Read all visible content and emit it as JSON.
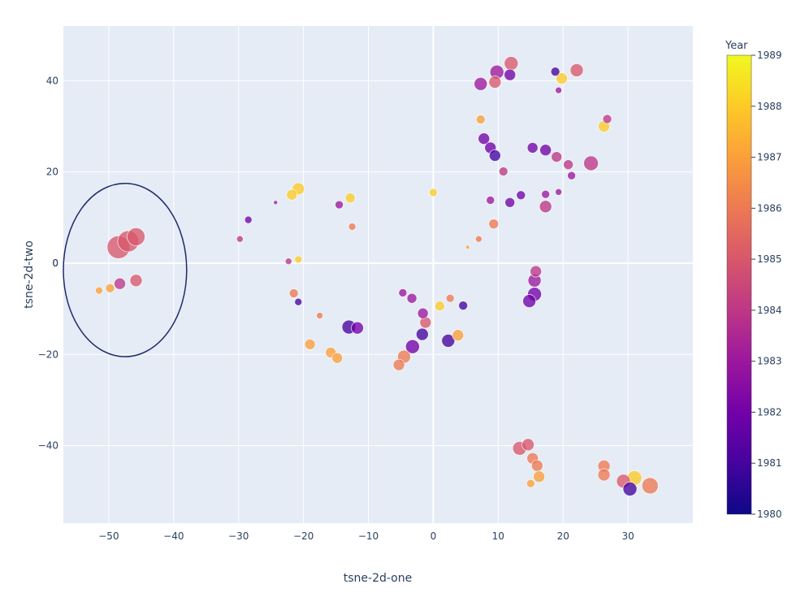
{
  "chart_data": {
    "type": "scatter",
    "xlabel": "tsne-2d-one",
    "ylabel": "tsne-2d-two",
    "xlim": [
      -57,
      40
    ],
    "ylim": [
      -57,
      52
    ],
    "x_ticks": [
      -50,
      -40,
      -30,
      -20,
      -10,
      0,
      10,
      20,
      30
    ],
    "y_ticks": [
      -40,
      -20,
      0,
      20,
      40
    ],
    "grid": true,
    "colorbar": {
      "title": "Year",
      "min": 1980,
      "max": 1989,
      "ticks": [
        1980,
        1981,
        1982,
        1983,
        1984,
        1985,
        1986,
        1987,
        1988,
        1989
      ],
      "colorscale": [
        "#0d0887",
        "#46039f",
        "#7201a8",
        "#9c179e",
        "#bd3786",
        "#d8576b",
        "#ed7953",
        "#fb9f3a",
        "#fdca26",
        "#f0f921"
      ]
    },
    "annotation_circle": {
      "cx": -47.5,
      "cy": -1.5,
      "rx": 9.5,
      "ry": 19
    },
    "points": [
      {
        "x": -48.5,
        "y": 3.5,
        "year": 1985,
        "size": 28
      },
      {
        "x": -47,
        "y": 4.8,
        "year": 1985,
        "size": 26
      },
      {
        "x": -45.8,
        "y": 5.8,
        "year": 1985,
        "size": 22
      },
      {
        "x": -45.8,
        "y": -3.8,
        "year": 1985,
        "size": 15
      },
      {
        "x": -48.3,
        "y": -4.5,
        "year": 1984,
        "size": 14
      },
      {
        "x": -49.8,
        "y": -5.5,
        "year": 1987,
        "size": 11
      },
      {
        "x": -51.5,
        "y": -6,
        "year": 1987,
        "size": 9
      },
      {
        "x": -29.8,
        "y": 5.3,
        "year": 1984,
        "size": 8
      },
      {
        "x": -28.5,
        "y": 9.5,
        "year": 1982,
        "size": 9
      },
      {
        "x": -24.3,
        "y": 13.3,
        "year": 1983,
        "size": 5
      },
      {
        "x": -21.8,
        "y": 15,
        "year": 1988,
        "size": 13
      },
      {
        "x": -20.8,
        "y": 16.3,
        "year": 1988,
        "size": 15
      },
      {
        "x": -22.3,
        "y": 0.4,
        "year": 1984,
        "size": 8
      },
      {
        "x": -20.8,
        "y": 0.8,
        "year": 1988,
        "size": 9
      },
      {
        "x": -21.5,
        "y": -6.6,
        "year": 1986,
        "size": 11
      },
      {
        "x": -20.8,
        "y": -8.5,
        "year": 1981,
        "size": 9
      },
      {
        "x": -19,
        "y": -17.8,
        "year": 1987,
        "size": 13
      },
      {
        "x": -17.5,
        "y": -11.5,
        "year": 1986,
        "size": 8
      },
      {
        "x": -15.8,
        "y": -19.6,
        "year": 1987,
        "size": 13
      },
      {
        "x": -14.8,
        "y": -20.8,
        "year": 1987,
        "size": 13
      },
      {
        "x": -14.5,
        "y": 12.8,
        "year": 1983,
        "size": 10
      },
      {
        "x": -12.8,
        "y": 14.3,
        "year": 1988,
        "size": 12
      },
      {
        "x": -12.5,
        "y": 8,
        "year": 1986,
        "size": 9
      },
      {
        "x": -13,
        "y": -14,
        "year": 1981,
        "size": 17
      },
      {
        "x": -11.7,
        "y": -14.2,
        "year": 1982,
        "size": 15
      },
      {
        "x": -4.7,
        "y": -6.5,
        "year": 1983,
        "size": 10
      },
      {
        "x": -3.3,
        "y": -7.7,
        "year": 1983,
        "size": 12
      },
      {
        "x": -5.3,
        "y": -22.3,
        "year": 1986,
        "size": 14
      },
      {
        "x": -4.5,
        "y": -20.5,
        "year": 1986,
        "size": 16
      },
      {
        "x": -3.2,
        "y": -18.3,
        "year": 1982,
        "size": 17
      },
      {
        "x": -1.7,
        "y": -15.6,
        "year": 1981,
        "size": 15
      },
      {
        "x": -1.6,
        "y": -11,
        "year": 1983,
        "size": 13
      },
      {
        "x": -1.2,
        "y": -13,
        "year": 1985,
        "size": 14
      },
      {
        "x": 0,
        "y": 15.5,
        "year": 1988,
        "size": 10
      },
      {
        "x": 1,
        "y": -9.4,
        "year": 1988,
        "size": 12
      },
      {
        "x": 2.6,
        "y": -7.7,
        "year": 1986,
        "size": 10
      },
      {
        "x": 2.3,
        "y": -17,
        "year": 1981,
        "size": 16
      },
      {
        "x": 3.8,
        "y": -15.8,
        "year": 1987,
        "size": 14
      },
      {
        "x": 4.6,
        "y": -9.3,
        "year": 1981,
        "size": 11
      },
      {
        "x": 5.3,
        "y": 3.5,
        "year": 1987,
        "size": 5
      },
      {
        "x": 7,
        "y": 5.3,
        "year": 1986,
        "size": 8
      },
      {
        "x": 7.3,
        "y": 31.5,
        "year": 1987,
        "size": 11
      },
      {
        "x": 7.3,
        "y": 39.3,
        "year": 1983,
        "size": 16
      },
      {
        "x": 7.8,
        "y": 27.3,
        "year": 1982,
        "size": 14
      },
      {
        "x": 8.8,
        "y": 25.3,
        "year": 1982,
        "size": 14
      },
      {
        "x": 9.5,
        "y": 23.6,
        "year": 1981,
        "size": 14
      },
      {
        "x": 8.8,
        "y": 13.8,
        "year": 1983,
        "size": 10
      },
      {
        "x": 9.3,
        "y": 8.6,
        "year": 1986,
        "size": 12
      },
      {
        "x": 9.8,
        "y": 41.9,
        "year": 1983,
        "size": 17
      },
      {
        "x": 9.5,
        "y": 39.7,
        "year": 1985,
        "size": 15
      },
      {
        "x": 10.8,
        "y": 20.1,
        "year": 1984,
        "size": 11
      },
      {
        "x": 11.8,
        "y": 41.3,
        "year": 1982,
        "size": 14
      },
      {
        "x": 12,
        "y": 43.8,
        "year": 1985,
        "size": 17
      },
      {
        "x": 11.8,
        "y": 13.3,
        "year": 1982,
        "size": 12
      },
      {
        "x": 13.5,
        "y": 14.9,
        "year": 1982,
        "size": 11
      },
      {
        "x": 15.3,
        "y": 25.3,
        "year": 1982,
        "size": 13
      },
      {
        "x": 17.3,
        "y": 24.8,
        "year": 1982,
        "size": 14
      },
      {
        "x": 17.3,
        "y": 15.1,
        "year": 1983,
        "size": 10
      },
      {
        "x": 17.3,
        "y": 12.4,
        "year": 1984,
        "size": 15
      },
      {
        "x": 19,
        "y": 23.3,
        "year": 1984,
        "size": 13
      },
      {
        "x": 18.8,
        "y": 42,
        "year": 1981,
        "size": 11
      },
      {
        "x": 19.8,
        "y": 40.5,
        "year": 1988,
        "size": 14
      },
      {
        "x": 19.3,
        "y": 37.9,
        "year": 1983,
        "size": 8
      },
      {
        "x": 19.3,
        "y": 15.6,
        "year": 1983,
        "size": 8
      },
      {
        "x": 20.8,
        "y": 21.6,
        "year": 1984,
        "size": 12
      },
      {
        "x": 21.3,
        "y": 19.2,
        "year": 1983,
        "size": 10
      },
      {
        "x": 22.1,
        "y": 42.3,
        "year": 1985,
        "size": 16
      },
      {
        "x": 24.3,
        "y": 21.9,
        "year": 1984,
        "size": 18
      },
      {
        "x": 26.3,
        "y": 30,
        "year": 1988,
        "size": 14
      },
      {
        "x": 26.8,
        "y": 31.6,
        "year": 1984,
        "size": 11
      },
      {
        "x": 15.8,
        "y": -1.8,
        "year": 1984,
        "size": 14
      },
      {
        "x": 15.6,
        "y": -3.8,
        "year": 1983,
        "size": 16
      },
      {
        "x": 15.6,
        "y": -6.8,
        "year": 1982,
        "size": 17
      },
      {
        "x": 14.8,
        "y": -8.3,
        "year": 1982,
        "size": 16
      },
      {
        "x": 13.3,
        "y": -40.6,
        "year": 1985,
        "size": 17
      },
      {
        "x": 14.6,
        "y": -39.8,
        "year": 1985,
        "size": 15
      },
      {
        "x": 15.3,
        "y": -42.8,
        "year": 1986,
        "size": 14
      },
      {
        "x": 16,
        "y": -44.4,
        "year": 1986,
        "size": 14
      },
      {
        "x": 16.3,
        "y": -46.8,
        "year": 1987,
        "size": 14
      },
      {
        "x": 15,
        "y": -48.3,
        "year": 1987,
        "size": 10
      },
      {
        "x": 26.3,
        "y": -44.5,
        "year": 1986,
        "size": 15
      },
      {
        "x": 26.3,
        "y": -46.4,
        "year": 1986,
        "size": 15
      },
      {
        "x": 29.3,
        "y": -47.8,
        "year": 1985,
        "size": 17
      },
      {
        "x": 30.3,
        "y": -49.5,
        "year": 1981,
        "size": 17
      },
      {
        "x": 31,
        "y": -47.1,
        "year": 1988,
        "size": 18
      },
      {
        "x": 33.4,
        "y": -48.8,
        "year": 1986,
        "size": 20
      }
    ]
  }
}
